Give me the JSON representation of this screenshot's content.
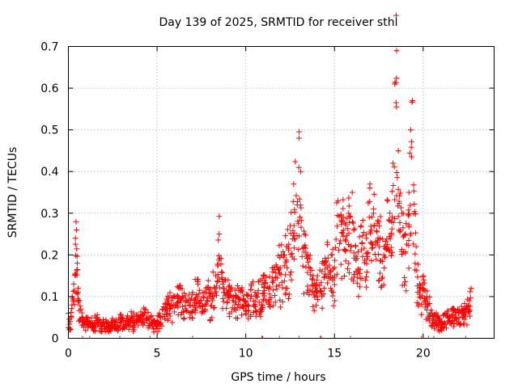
{
  "chart_data": {
    "type": "scatter",
    "title": "Day 139 of 2025, SRMTID for receiver sthl",
    "xlabel": "GPS time / hours",
    "ylabel": "SRMTID / TECUs",
    "xlim": [
      0,
      24
    ],
    "ylim": [
      0,
      0.7
    ],
    "xticks": [
      0,
      5,
      10,
      15,
      20
    ],
    "yticks": [
      0,
      0.1,
      0.2,
      0.3,
      0.4,
      0.5,
      0.6,
      0.7
    ],
    "xtick_labels": [
      "0",
      "5",
      "10",
      "15",
      "20"
    ],
    "ytick_labels": [
      "0",
      "0.1",
      "0.2",
      "0.3",
      "0.4",
      "0.5",
      "0.6",
      "0.7"
    ],
    "grid": true,
    "marker": "+",
    "color": "#ff0000",
    "series": [
      {
        "name": "SRMTID",
        "x": [
          0.0,
          0.1,
          0.2,
          0.3,
          0.4,
          0.45,
          0.5,
          0.55,
          0.6,
          0.7,
          0.8,
          0.9,
          1.0,
          1.2,
          1.4,
          1.6,
          1.8,
          2.0,
          2.3,
          2.6,
          3.0,
          3.3,
          3.6,
          4.0,
          4.3,
          4.6,
          5.0,
          5.3,
          5.6,
          6.0,
          6.3,
          6.6,
          7.0,
          7.3,
          7.6,
          8.0,
          8.3,
          8.5,
          8.7,
          9.0,
          9.3,
          9.6,
          10.0,
          10.3,
          10.6,
          11.0,
          11.3,
          11.6,
          12.0,
          12.3,
          12.5,
          12.7,
          12.9,
          13.0,
          13.1,
          13.3,
          13.5,
          13.8,
          14.0,
          14.3,
          14.6,
          15.0,
          15.2,
          15.5,
          15.8,
          16.0,
          16.2,
          16.5,
          16.8,
          17.0,
          17.2,
          17.5,
          17.8,
          18.0,
          18.2,
          18.3,
          18.4,
          18.5,
          18.6,
          18.8,
          19.0,
          19.2,
          19.3,
          19.4,
          19.6,
          19.8,
          20.0,
          20.2,
          20.5,
          20.8,
          21.0,
          21.3,
          21.6,
          22.0,
          22.3,
          22.6,
          22.7
        ],
        "y": [
          0.06,
          0.04,
          0.08,
          0.13,
          0.24,
          0.26,
          0.18,
          0.12,
          0.09,
          0.07,
          0.05,
          0.04,
          0.05,
          0.04,
          0.03,
          0.05,
          0.03,
          0.04,
          0.03,
          0.04,
          0.05,
          0.04,
          0.05,
          0.05,
          0.06,
          0.05,
          0.04,
          0.07,
          0.09,
          0.1,
          0.12,
          0.09,
          0.11,
          0.13,
          0.1,
          0.12,
          0.15,
          0.25,
          0.13,
          0.14,
          0.1,
          0.12,
          0.09,
          0.13,
          0.1,
          0.15,
          0.12,
          0.17,
          0.2,
          0.22,
          0.27,
          0.37,
          0.32,
          0.48,
          0.4,
          0.25,
          0.2,
          0.15,
          0.14,
          0.18,
          0.23,
          0.17,
          0.33,
          0.29,
          0.3,
          0.35,
          0.22,
          0.27,
          0.24,
          0.37,
          0.3,
          0.28,
          0.22,
          0.33,
          0.28,
          0.42,
          0.61,
          0.69,
          0.45,
          0.3,
          0.25,
          0.35,
          0.5,
          0.57,
          0.22,
          0.13,
          0.15,
          0.1,
          0.06,
          0.05,
          0.04,
          0.06,
          0.07,
          0.06,
          0.07,
          0.09,
          0.12
        ]
      }
    ]
  }
}
